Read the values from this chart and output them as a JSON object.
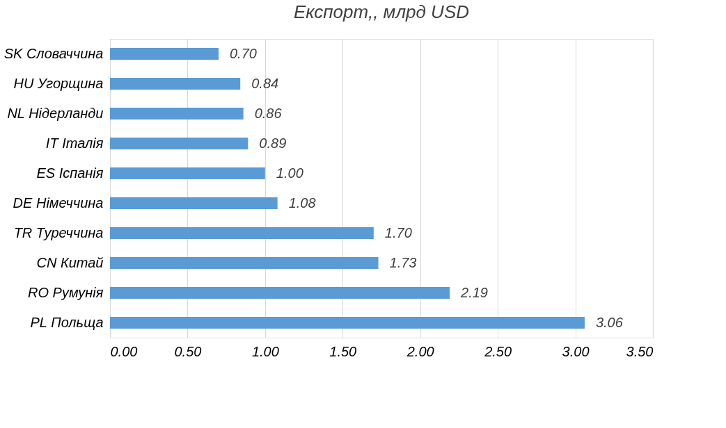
{
  "chart_data": {
    "type": "bar",
    "orientation": "horizontal",
    "title": "Експорт,, млрд USD",
    "categories": [
      "SK Словаччина",
      "HU Угорщина",
      "NL Нідерланди",
      "IT Італія",
      "ES Іспанія",
      "DE Німеччина",
      "TR Туреччина",
      "CN Китай",
      "RO Румунія",
      "PL Польща"
    ],
    "values": [
      0.7,
      0.84,
      0.86,
      0.89,
      1.0,
      1.08,
      1.7,
      1.73,
      2.19,
      3.06
    ],
    "value_labels": [
      "0.70",
      "0.84",
      "0.86",
      "0.89",
      "1.00",
      "1.08",
      "1.70",
      "1.73",
      "2.19",
      "3.06"
    ],
    "color": "#5b9bd5",
    "xlim": [
      0,
      3.5
    ],
    "xticks": [
      {
        "value": 0,
        "label": "0.00"
      },
      {
        "value": 0.5,
        "label": "0.50"
      },
      {
        "value": 1,
        "label": "1.00"
      },
      {
        "value": 1.5,
        "label": "1.50"
      },
      {
        "value": 2,
        "label": "2.00"
      },
      {
        "value": 2.5,
        "label": "2.50"
      },
      {
        "value": 3,
        "label": "3.00"
      },
      {
        "value": 3.5,
        "label": "3.50"
      }
    ],
    "grid": "x"
  }
}
